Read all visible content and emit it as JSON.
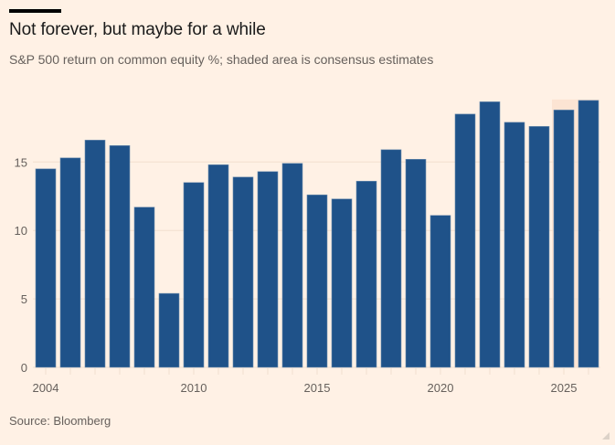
{
  "header": {
    "title": "Not forever, but maybe for a while",
    "subtitle": "S&P 500 return on common equity %; shaded area is consensus estimates"
  },
  "footer": {
    "source": "Source: Bloomberg"
  },
  "colors": {
    "background": "#FFF1E5",
    "bar": "#1F5289",
    "shaded": "#FCE4D3",
    "grid": "#F2DFCE",
    "text": "#66605C"
  },
  "chart_data": {
    "type": "bar",
    "title": "Not forever, but maybe for a while",
    "subtitle": "S&P 500 return on common equity %; shaded area is consensus estimates",
    "xlabel": "",
    "ylabel": "",
    "categories": [
      "2004",
      "2005",
      "2006",
      "2007",
      "2008",
      "2009",
      "2010",
      "2011",
      "2012",
      "2013",
      "2014",
      "2015",
      "2016",
      "2017",
      "2018",
      "2019",
      "2020",
      "2021",
      "2022",
      "2023",
      "2024",
      "2025",
      "2026"
    ],
    "values": [
      14.5,
      15.3,
      16.6,
      16.2,
      11.7,
      5.4,
      13.5,
      14.8,
      13.9,
      14.3,
      14.9,
      12.6,
      12.3,
      13.6,
      15.9,
      15.2,
      11.1,
      18.5,
      19.4,
      17.9,
      17.6,
      18.8,
      19.5
    ],
    "ylim": [
      0,
      19.5
    ],
    "yticks": [
      0,
      5,
      10,
      15
    ],
    "xtick_labels": [
      {
        "year": "2004",
        "label": "2004"
      },
      {
        "year": "2010",
        "label": "2010"
      },
      {
        "year": "2015",
        "label": "2015"
      },
      {
        "year": "2020",
        "label": "2020"
      },
      {
        "year": "2025",
        "label": "2025"
      }
    ],
    "shaded_estimates": {
      "from": "2025",
      "to": "2026",
      "label": "consensus estimates"
    },
    "grid": true,
    "legend": "none",
    "source": "Source: Bloomberg"
  }
}
